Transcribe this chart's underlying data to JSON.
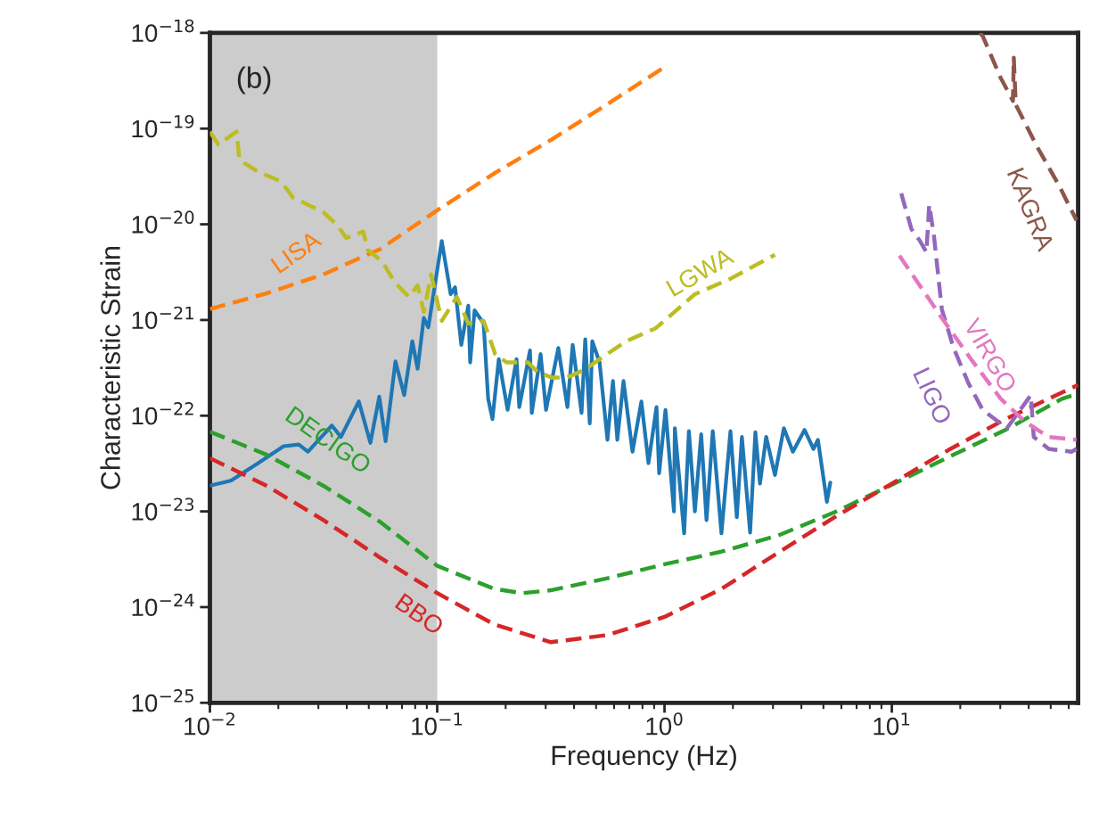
{
  "chart_data": {
    "type": "line",
    "xlabel": "Frequency (Hz)",
    "ylabel": "Characteristic Strain",
    "log": "xy",
    "grid": false,
    "legend": false,
    "xlim": [
      0.01,
      66
    ],
    "ylim": [
      1e-25,
      1e-18
    ],
    "xticks": [
      {
        "value": 0.01,
        "label": "10$^{−2}$"
      },
      {
        "value": 0.1,
        "label": "10$^{−1}$"
      },
      {
        "value": 1,
        "label": "10$^{0}$"
      },
      {
        "value": 10,
        "label": "10$^{1}$"
      }
    ],
    "yticks": [
      {
        "value": 1e-25,
        "label": "10$^{−25}$"
      },
      {
        "value": 1e-24,
        "label": "10$^{−24}$"
      },
      {
        "value": 1e-23,
        "label": "10$^{−23}$"
      },
      {
        "value": 1e-22,
        "label": "10$^{−22}$"
      },
      {
        "value": 1e-21,
        "label": "10$^{−21}$"
      },
      {
        "value": 1e-20,
        "label": "10$^{−20}$"
      },
      {
        "value": 1e-19,
        "label": "10$^{−19}$"
      },
      {
        "value": 1e-18,
        "label": "10$^{−18}$"
      }
    ],
    "bands": [
      {
        "axis": "x",
        "from": 0.01,
        "to": 0.1,
        "color": "#cccccc"
      }
    ],
    "annotations": [
      "(b)"
    ],
    "series": [
      {
        "color": "#1f77b4",
        "line_style": "solid",
        "x": [
          0.01,
          0.0124,
          0.0163,
          0.0211,
          0.0246,
          0.027,
          0.0344,
          0.0377,
          0.0452,
          0.0508,
          0.0556,
          0.0593,
          0.0655,
          0.0716,
          0.0777,
          0.082,
          0.0873,
          0.0914,
          0.1047,
          0.1146,
          0.1198,
          0.1276,
          0.137,
          0.1396,
          0.146,
          0.16,
          0.1675,
          0.175,
          0.1866,
          0.204,
          0.2234,
          0.2296,
          0.256,
          0.2606,
          0.285,
          0.301,
          0.341,
          0.374,
          0.3945,
          0.4315,
          0.448,
          0.469,
          0.481,
          0.518,
          0.561,
          0.593,
          0.62,
          0.66,
          0.723,
          0.791,
          0.85,
          0.922,
          0.947,
          1.01,
          1.1,
          1.11,
          1.22,
          1.28,
          1.36,
          1.45,
          1.53,
          1.63,
          1.78,
          1.95,
          2.08,
          2.19,
          2.38,
          2.51,
          2.63,
          2.8,
          3.06,
          3.35,
          3.67,
          4.13,
          4.52,
          4.73,
          5.18,
          5.36
        ],
        "values": [
          1.86e-23,
          2.1e-23,
          3.2e-23,
          4.8e-23,
          5e-23,
          4.2e-23,
          7.9e-23,
          6e-23,
          1.41e-22,
          5.2e-23,
          1.58e-22,
          5.4e-23,
          3.7e-22,
          1.64e-22,
          6e-22,
          3.1e-22,
          1.05e-21,
          8.4e-22,
          6.7e-21,
          1.86e-21,
          2.2e-21,
          5.5e-22,
          1.41e-21,
          3.6e-22,
          1.26e-21,
          9.2e-22,
          1.51e-22,
          9.2e-23,
          3.9e-22,
          1.15e-22,
          3.9e-22,
          1.23e-22,
          4.8e-22,
          1.07e-22,
          4.4e-22,
          1.15e-22,
          5.1e-22,
          1.23e-22,
          5.5e-22,
          1.07e-22,
          6.3e-22,
          8.3e-23,
          6e-22,
          3.6e-22,
          5.6e-23,
          2.3e-22,
          5.6e-23,
          2.3e-22,
          4.2e-23,
          1.41e-22,
          3.2e-23,
          1.23e-22,
          2.5e-23,
          1.15e-22,
          1e-23,
          7.4e-23,
          5.9e-24,
          6.9e-23,
          1e-23,
          6.4e-23,
          8.1e-24,
          6.9e-23,
          5.9e-24,
          6.9e-23,
          8.7e-24,
          6e-23,
          6e-24,
          6.7e-23,
          1.95e-23,
          6e-23,
          2.4e-23,
          7.4e-23,
          4.2e-23,
          7.1e-23,
          4.5e-23,
          5.6e-23,
          1.26e-23,
          2e-23
        ]
      },
      {
        "name": "LISA",
        "color": "#ff7f0e",
        "line_style": "dashed",
        "x": [
          0.01,
          0.0178,
          0.0316,
          0.056,
          0.1,
          0.178,
          0.316,
          0.56,
          1.0
        ],
        "values": [
          1.3e-21,
          1.9e-21,
          3e-21,
          5.5e-21,
          1.4e-20,
          3.4e-20,
          7.6e-20,
          1.8e-19,
          4.4e-19
        ]
      },
      {
        "name": "LGWA",
        "color": "#bcbd22",
        "line_style": "dashed",
        "x": [
          0.01,
          0.0109,
          0.0131,
          0.0135,
          0.0161,
          0.0206,
          0.0232,
          0.027,
          0.0315,
          0.0364,
          0.0398,
          0.0473,
          0.0494,
          0.0572,
          0.0649,
          0.075,
          0.082,
          0.0873,
          0.094,
          0.1047,
          0.122,
          0.137,
          0.16,
          0.18,
          0.202,
          0.251,
          0.275,
          0.318,
          0.371,
          0.444,
          0.518,
          0.678,
          0.914,
          1.36,
          1.95,
          3.06
        ],
        "values": [
          9.3e-20,
          6.8e-20,
          9.3e-20,
          4.7e-20,
          3.6e-20,
          2.8e-20,
          1.9e-20,
          1.6e-20,
          1.34e-20,
          9.7e-21,
          7.2e-21,
          8.4e-21,
          5.4e-21,
          4.1e-21,
          2.5e-21,
          1.74e-21,
          2.3e-21,
          1.21e-21,
          3e-21,
          9.8e-22,
          1.74e-21,
          9.2e-22,
          9.8e-22,
          4.4e-22,
          3.6e-22,
          3.6e-22,
          2.9e-22,
          2.5e-22,
          2.5e-22,
          3e-22,
          3.9e-22,
          6e-22,
          8.2e-22,
          1.86e-21,
          2.7e-21,
          4.8e-21
        ]
      },
      {
        "name": "DECIGO",
        "color": "#2ca02c",
        "line_style": "dashed",
        "x": [
          0.01,
          0.0178,
          0.0316,
          0.056,
          0.1,
          0.178,
          0.237,
          0.316,
          0.56,
          1.0,
          1.78,
          3.16,
          5.6,
          10,
          17.8,
          31.6,
          56,
          66
        ],
        "values": [
          6.8e-23,
          3.9e-23,
          1.85e-23,
          7.8e-24,
          2.7e-24,
          1.55e-24,
          1.4e-24,
          1.5e-24,
          2e-24,
          2.8e-24,
          3.8e-24,
          5.6e-24,
          9.8e-24,
          1.9e-23,
          3.7e-23,
          7.1e-23,
          1.5e-22,
          1.7e-22
        ]
      },
      {
        "name": "BBO",
        "color": "#d62728",
        "line_style": "dashed",
        "x": [
          0.01,
          0.0178,
          0.0316,
          0.056,
          0.1,
          0.178,
          0.316,
          0.56,
          1.0,
          1.78,
          3.16,
          5.6,
          10,
          17.8,
          31.6,
          66
        ],
        "values": [
          3.6e-23,
          1.85e-23,
          8.1e-24,
          3.3e-24,
          1.4e-24,
          6.6e-25,
          4.3e-25,
          5.1e-25,
          7.9e-25,
          1.55e-24,
          3.7e-24,
          8.7e-24,
          1.95e-23,
          4.4e-23,
          9.2e-23,
          2.1e-22
        ]
      },
      {
        "name": "LIGO",
        "color": "#9467bd",
        "line_style": "dashed",
        "x": [
          11.0,
          12.2,
          13.3,
          14.2,
          14.6,
          15.3,
          16.6,
          18.7,
          21.7,
          25.1,
          32.1,
          40.9,
          42.1,
          49.0,
          61.9,
          64.9
        ],
        "values": [
          2.1e-20,
          8.9e-21,
          6.7e-21,
          5.1e-21,
          1.6e-20,
          7.8e-21,
          1.29e-21,
          5.1e-22,
          2.2e-22,
          1.15e-22,
          7.4e-23,
          1.64e-22,
          6e-23,
          4.5e-23,
          4.2e-23,
          4.5e-23
        ]
      },
      {
        "name": "VIRGO",
        "color": "#e377c2",
        "line_style": "dashed",
        "x": [
          10.8,
          16.6,
          22.3,
          30.1,
          38.4,
          49.0,
          64.9
        ],
        "values": [
          4.7e-21,
          1.05e-21,
          3.9e-22,
          1.51e-22,
          8.7e-23,
          6e-23,
          5.6e-23
        ]
      },
      {
        "name": "KAGRA",
        "color": "#8c564b",
        "line_style": "dashed",
        "x": [
          24.4,
          25.1,
          30.1,
          34.1,
          34.4,
          35.1,
          43.2,
          55.1,
          64.9
        ],
        "values": [
          1e-18,
          9.3e-19,
          3.4e-19,
          1.95e-19,
          5.5e-19,
          1.78e-19,
          6.7e-20,
          2.4e-20,
          1.1e-20
        ]
      }
    ]
  }
}
